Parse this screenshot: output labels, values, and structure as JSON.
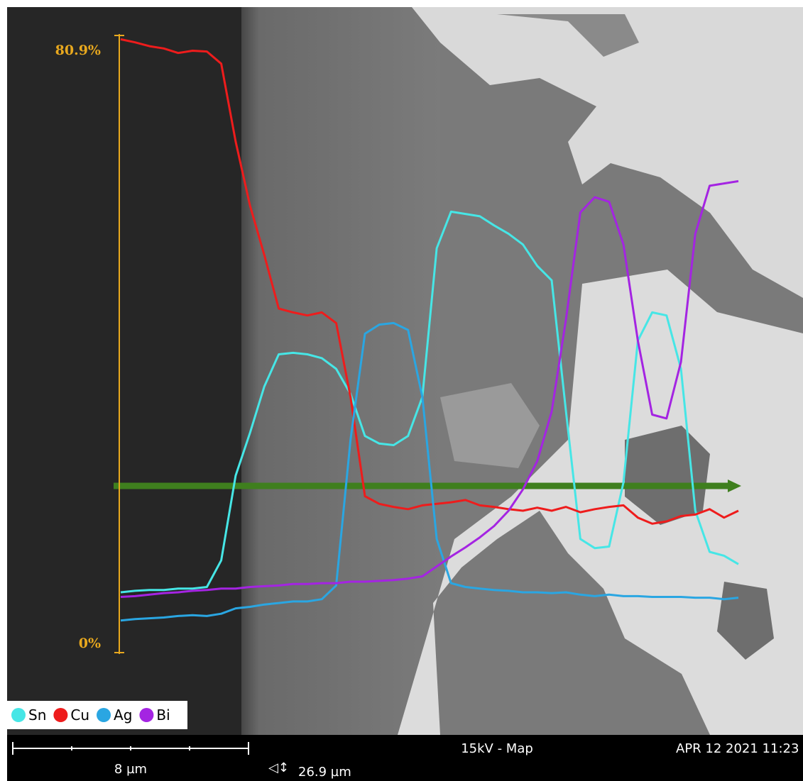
{
  "chart_data": {
    "type": "line",
    "ylim": [
      0,
      80.9
    ],
    "yticks": [
      {
        "value": 0,
        "label": "0%"
      },
      {
        "value": 80.9,
        "label": "80.9%"
      }
    ],
    "axis_color": "#e8a81e",
    "series": [
      {
        "name": "Sn",
        "color": "#46e6e6",
        "values": [
          7.9,
          8.1,
          8.2,
          8.2,
          8.4,
          8.4,
          8.6,
          12.1,
          23.2,
          28.8,
          34.9,
          39.1,
          39.3,
          39.1,
          38.6,
          37.2,
          33.9,
          28.4,
          27.4,
          27.2,
          28.4,
          33.5,
          53.0,
          57.8,
          57.5,
          57.2,
          56.0,
          54.9,
          53.5,
          50.7,
          48.8,
          31.6,
          14.9,
          13.7,
          13.9,
          22.3,
          40.9,
          44.6,
          44.2,
          37.2,
          18.6,
          13.2,
          12.7,
          11.6
        ]
      },
      {
        "name": "Cu",
        "color": "#ee1c1c",
        "values": [
          80.4,
          80.0,
          79.5,
          79.2,
          78.6,
          78.9,
          78.8,
          77.2,
          67.0,
          58.6,
          52.1,
          45.1,
          44.6,
          44.2,
          44.6,
          43.2,
          33.5,
          20.5,
          19.5,
          19.1,
          18.8,
          19.3,
          19.5,
          19.7,
          20.0,
          19.3,
          19.1,
          18.8,
          18.6,
          19.0,
          18.6,
          19.1,
          18.4,
          18.8,
          19.1,
          19.3,
          17.7,
          16.9,
          17.2,
          17.9,
          18.1,
          18.8,
          17.7,
          18.6
        ]
      },
      {
        "name": "Ag",
        "color": "#2aa6e2",
        "values": [
          4.2,
          4.4,
          4.5,
          4.6,
          4.8,
          4.9,
          4.8,
          5.1,
          5.8,
          6.0,
          6.3,
          6.5,
          6.7,
          6.7,
          7.0,
          8.8,
          27.9,
          41.8,
          43.0,
          43.2,
          42.3,
          33.5,
          14.9,
          9.1,
          8.6,
          8.4,
          8.2,
          8.1,
          7.9,
          7.9,
          7.8,
          7.9,
          7.6,
          7.4,
          7.6,
          7.4,
          7.4,
          7.3,
          7.3,
          7.3,
          7.2,
          7.2,
          7.0,
          7.2
        ]
      },
      {
        "name": "Bi",
        "color": "#a424e2",
        "values": [
          7.3,
          7.4,
          7.6,
          7.8,
          7.9,
          8.1,
          8.2,
          8.4,
          8.4,
          8.6,
          8.7,
          8.8,
          9.0,
          9.0,
          9.1,
          9.1,
          9.3,
          9.3,
          9.4,
          9.5,
          9.7,
          10.0,
          11.3,
          12.6,
          13.8,
          15.1,
          16.6,
          18.6,
          21.4,
          25.1,
          31.6,
          43.7,
          57.7,
          59.7,
          59.1,
          53.5,
          40.9,
          31.2,
          30.7,
          38.1,
          54.9,
          61.2,
          61.5,
          61.8
        ]
      }
    ],
    "scale_bar": "8 µm",
    "field_width": "26.9 µm",
    "mode": "15kV - Map",
    "timestamp": "APR 12 2021 11:23"
  }
}
